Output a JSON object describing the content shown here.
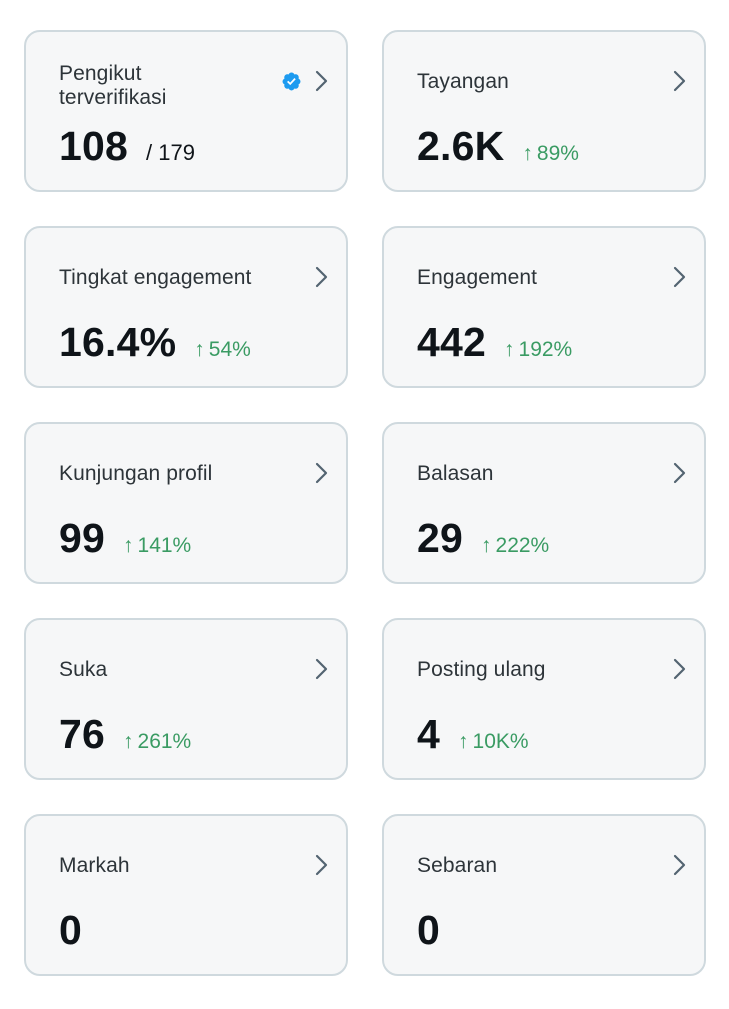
{
  "cards": [
    {
      "title": "Pengikut terverifikasi",
      "value": "108",
      "total": "/ 179",
      "change": "",
      "verified": true
    },
    {
      "title": "Tayangan",
      "value": "2.6K",
      "change": "89%"
    },
    {
      "title": "Tingkat engagement",
      "value": "16.4%",
      "change": "54%"
    },
    {
      "title": "Engagement",
      "value": "442",
      "change": "192%"
    },
    {
      "title": "Kunjungan profil",
      "value": "99",
      "change": "141%"
    },
    {
      "title": "Balasan",
      "value": "29",
      "change": "222%"
    },
    {
      "title": "Suka",
      "value": "76",
      "change": "261%"
    },
    {
      "title": "Posting ulang",
      "value": "4",
      "change": "10K%"
    },
    {
      "title": "Markah",
      "value": "0",
      "change": ""
    },
    {
      "title": "Sebaran",
      "value": "0",
      "change": ""
    }
  ],
  "icons": {
    "chevron": "chevron-right-icon",
    "verified": "verified-badge-icon",
    "up_arrow": "↑"
  },
  "colors": {
    "positive": "#3a9b63",
    "verified": "#1d9bf0",
    "card_bg": "#f6f7f8",
    "card_border": "#cfd9de"
  }
}
